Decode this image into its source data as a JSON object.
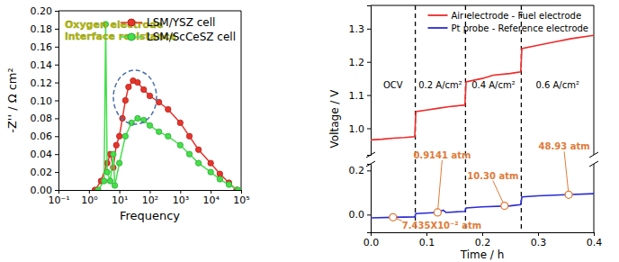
{
  "chart_data": [
    {
      "type": "line",
      "x_label": "Frequency",
      "y_label": "-Z'' / Ω cm²",
      "log": "x",
      "xlim": [
        0.1,
        100000
      ],
      "xticks": [
        {
          "value": 0.1,
          "label": "10⁻¹"
        },
        {
          "value": 1,
          "label": "10⁰"
        },
        {
          "value": 10,
          "label": "10¹"
        },
        {
          "value": 100,
          "label": "10²"
        },
        {
          "value": 1000,
          "label": "10³"
        },
        {
          "value": 10000,
          "label": "10⁴"
        },
        {
          "value": 100000,
          "label": "10⁵"
        }
      ],
      "ylim": [
        0,
        0.2
      ],
      "yticks": [
        {
          "value": 0,
          "label": "0.00"
        },
        0.02,
        0.04,
        0.06,
        0.08,
        {
          "value": 0.1,
          "label": "0.10"
        },
        0.12,
        0.14,
        0.16,
        0.18,
        {
          "value": 0.2,
          "label": "0.20"
        }
      ],
      "legend": "upper right",
      "marker": "circle",
      "annotations": [
        "Oxygen electrode",
        "interface resistance"
      ],
      "series": [
        {
          "name": "LSM/YSZ cell",
          "color": "#e8332a",
          "x": [
            1.58,
            2.51,
            3.98,
            5.01,
            6.31,
            7.94,
            10,
            12.6,
            15.8,
            20.0,
            28.2,
            39.8,
            63.1,
            100,
            200,
            398,
            1000,
            2000,
            3980,
            10000,
            20000,
            39800,
            70800
          ],
          "values": [
            0.0,
            0.01,
            0.03,
            0.04,
            0.025,
            0.05,
            0.06,
            0.08,
            0.1,
            0.115,
            0.122,
            0.12,
            0.112,
            0.105,
            0.098,
            0.09,
            0.075,
            0.06,
            0.045,
            0.03,
            0.018,
            0.008,
            0.0
          ]
        },
        {
          "name": "LSM/ScCeSZ cell",
          "color": "#44e04a",
          "x": [
            2.0,
            3.16,
            3.55,
            3.98,
            5.01,
            6.31,
            7.08,
            10,
            15.8,
            25.1,
            39.8,
            63.1,
            100,
            200,
            398,
            1000,
            2000,
            3980,
            10000,
            20000,
            39800,
            79400
          ],
          "values": [
            0.0,
            0.01,
            0.185,
            0.02,
            0.01,
            0.04,
            0.005,
            0.03,
            0.06,
            0.075,
            0.08,
            0.078,
            0.072,
            0.065,
            0.06,
            0.05,
            0.04,
            0.03,
            0.02,
            0.012,
            0.006,
            0.0
          ]
        }
      ]
    },
    {
      "type": "line",
      "x_label": "Time / h",
      "y_label": "Voltage / V",
      "xlim": [
        0,
        0.4
      ],
      "xticks": [
        {
          "value": 0,
          "label": "0.0"
        },
        0.1,
        0.2,
        0.3,
        0.4
      ],
      "ylim": [
        -0.08,
        0.23
      ],
      "yticks": [
        {
          "value": 0,
          "label": "0.0"
        },
        0.2
      ],
      "y2lim": [
        0.92,
        1.37
      ],
      "y2ticks": [
        {
          "value": 1,
          "label": "1.0"
        },
        1.1,
        1.2,
        1.3
      ],
      "legend": "upper right",
      "vlines": [
        0.08,
        0.17,
        0.27
      ],
      "step_labels": [
        "OCV",
        "0.2 A/cm²",
        "0.4 A/cm²",
        "0.6 A/cm²"
      ],
      "annotations": [
        {
          "text": "7.435X10⁻² atm",
          "x": 0.04,
          "y": -0.012
        },
        {
          "text": "0.9141 atm",
          "x": 0.12,
          "y": 0.01
        },
        {
          "text": "10.30 atm",
          "x": 0.24,
          "y": 0.04
        },
        {
          "text": "48.93 atm",
          "x": 0.355,
          "y": 0.09
        }
      ],
      "series": [
        {
          "name": "Air electrode - Fuel electrode",
          "color": "#ee2a2a",
          "axis": "y2",
          "x": [
            0,
            0.02,
            0.04,
            0.06,
            0.079,
            0.081,
            0.1,
            0.12,
            0.14,
            0.169,
            0.171,
            0.2,
            0.22,
            0.25,
            0.269,
            0.271,
            0.3,
            0.33,
            0.36,
            0.4
          ],
          "values": [
            0.965,
            0.967,
            0.97,
            0.972,
            0.975,
            1.05,
            1.055,
            1.06,
            1.065,
            1.07,
            1.14,
            1.15,
            1.16,
            1.165,
            1.17,
            1.24,
            1.25,
            1.26,
            1.27,
            1.28
          ]
        },
        {
          "name": "Pt probe - Reference electrode",
          "color": "#2b2bd6",
          "x": [
            0,
            0.04,
            0.079,
            0.081,
            0.12,
            0.13,
            0.135,
            0.169,
            0.171,
            0.2,
            0.25,
            0.269,
            0.271,
            0.3,
            0.35,
            0.4
          ],
          "values": [
            -0.015,
            -0.012,
            -0.01,
            0.005,
            0.01,
            0.02,
            0.01,
            0.015,
            0.03,
            0.035,
            0.04,
            0.045,
            0.08,
            0.085,
            0.09,
            0.095
          ]
        }
      ]
    }
  ]
}
